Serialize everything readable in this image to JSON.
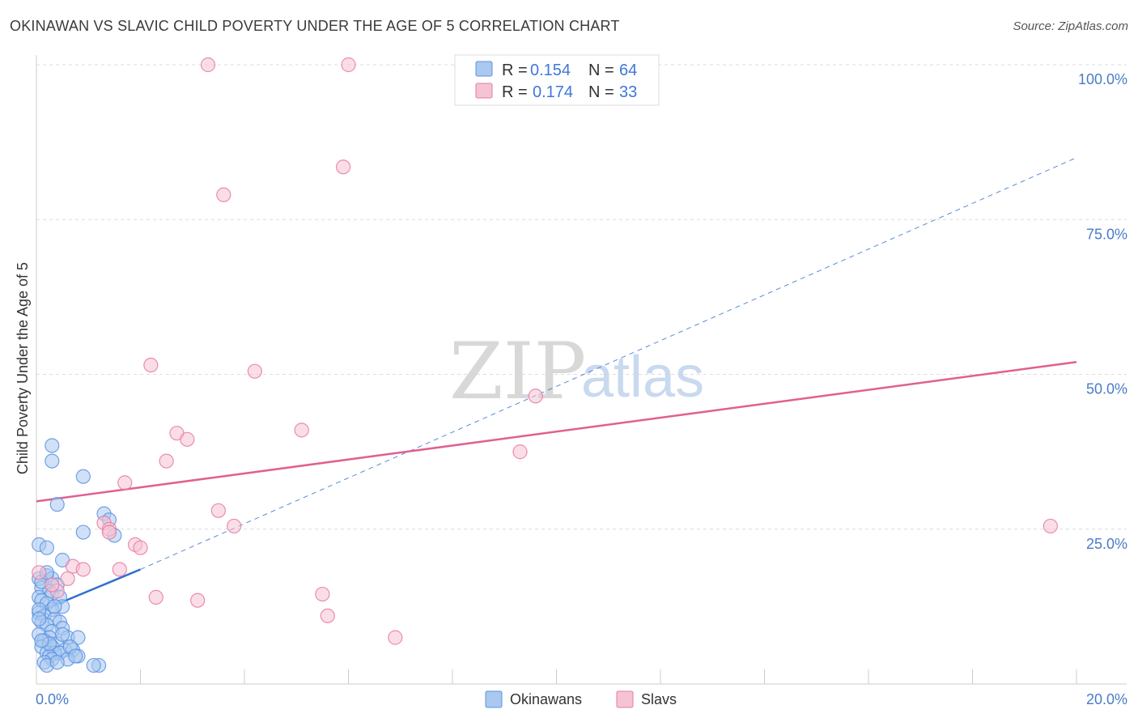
{
  "title": "OKINAWAN VS SLAVIC CHILD POVERTY UNDER THE AGE OF 5 CORRELATION CHART",
  "source": "Source: ZipAtlas.com",
  "watermark": {
    "zip": "ZIP",
    "atlas": "atlas"
  },
  "colors": {
    "okinawan": "#5b93e0",
    "okinawan_fill": "#aac8f0",
    "slav": "#e87aa0",
    "slav_fill": "#f6c3d4",
    "okinawan_line": "#2f6fce",
    "slav_line": "#e06090",
    "tick": "#4a7bc8"
  },
  "chart_data": {
    "type": "scatter",
    "title": "OKINAWAN VS SLAVIC CHILD POVERTY UNDER THE AGE OF 5 CORRELATION CHART",
    "xlabel": "",
    "ylabel": "Child Poverty Under the Age of 5",
    "xlim": [
      0,
      20
    ],
    "ylim": [
      0,
      100
    ],
    "x_ticks": [
      "0.0%",
      "20.0%"
    ],
    "y_ticks": [
      {
        "value": 25,
        "label": "25.0%"
      },
      {
        "value": 50,
        "label": "50.0%"
      },
      {
        "value": 75,
        "label": "75.0%"
      },
      {
        "value": 100,
        "label": "100.0%"
      }
    ],
    "legend": [
      {
        "name": "Okinawans",
        "r_label": "R =",
        "r": "0.154",
        "n_label": "N =",
        "n": "64"
      },
      {
        "name": "Slavs",
        "r_label": "R =",
        "r": "0.174",
        "n_label": "N =",
        "n": "33"
      }
    ],
    "series": [
      {
        "name": "Okinawans",
        "points": [
          [
            0.3,
            38.5
          ],
          [
            0.3,
            36
          ],
          [
            0.4,
            29
          ],
          [
            0.9,
            33.5
          ],
          [
            1.3,
            27.5
          ],
          [
            1.4,
            26.5
          ],
          [
            0.9,
            24.5
          ],
          [
            1.5,
            24
          ],
          [
            0.05,
            22.5
          ],
          [
            0.2,
            22
          ],
          [
            0.5,
            20
          ],
          [
            0.2,
            17.5
          ],
          [
            0.3,
            17
          ],
          [
            0.05,
            17
          ],
          [
            0.4,
            16
          ],
          [
            0.1,
            15.5
          ],
          [
            0.25,
            15
          ],
          [
            0.3,
            14.5
          ],
          [
            0.05,
            14
          ],
          [
            0.45,
            14
          ],
          [
            0.1,
            13.5
          ],
          [
            0.2,
            13
          ],
          [
            0.5,
            12.5
          ],
          [
            0.3,
            12
          ],
          [
            0.05,
            11.5
          ],
          [
            0.15,
            11
          ],
          [
            0.35,
            10.5
          ],
          [
            0.1,
            10
          ],
          [
            0.45,
            10
          ],
          [
            0.2,
            9.5
          ],
          [
            0.5,
            9
          ],
          [
            0.3,
            8.5
          ],
          [
            0.05,
            8
          ],
          [
            0.25,
            7.5
          ],
          [
            0.6,
            7.5
          ],
          [
            0.8,
            7.5
          ],
          [
            0.15,
            7
          ],
          [
            0.4,
            6.5
          ],
          [
            0.1,
            6
          ],
          [
            0.3,
            6
          ],
          [
            0.55,
            5.5
          ],
          [
            0.7,
            5.5
          ],
          [
            0.2,
            5
          ],
          [
            0.35,
            5
          ],
          [
            0.45,
            5
          ],
          [
            0.25,
            4.5
          ],
          [
            0.8,
            4.5
          ],
          [
            0.6,
            4
          ],
          [
            0.3,
            4
          ],
          [
            0.15,
            3.5
          ],
          [
            1.2,
            3
          ],
          [
            1.1,
            3
          ],
          [
            0.2,
            3
          ],
          [
            0.4,
            3.5
          ],
          [
            0.05,
            12
          ],
          [
            0.1,
            16.5
          ],
          [
            0.2,
            18
          ],
          [
            0.05,
            10.5
          ],
          [
            0.35,
            12.5
          ],
          [
            0.65,
            6
          ],
          [
            0.75,
            4.5
          ],
          [
            0.25,
            6.5
          ],
          [
            0.5,
            8
          ],
          [
            0.1,
            7
          ]
        ],
        "trend": {
          "x": [
            0,
            2
          ],
          "y": [
            11.5,
            18.5
          ],
          "extended_x": [
            2,
            20
          ],
          "extended_y": [
            18.5,
            85
          ]
        }
      },
      {
        "name": "Slavs",
        "points": [
          [
            3.3,
            100
          ],
          [
            6.0,
            100
          ],
          [
            5.9,
            83.5
          ],
          [
            3.6,
            79
          ],
          [
            2.2,
            51.5
          ],
          [
            4.2,
            50.5
          ],
          [
            9.6,
            46.5
          ],
          [
            5.1,
            41
          ],
          [
            2.7,
            40.5
          ],
          [
            2.9,
            39.5
          ],
          [
            2.5,
            36
          ],
          [
            9.3,
            37.5
          ],
          [
            1.7,
            32.5
          ],
          [
            3.5,
            28
          ],
          [
            1.3,
            26
          ],
          [
            1.4,
            25
          ],
          [
            3.8,
            25.5
          ],
          [
            1.9,
            22.5
          ],
          [
            2.0,
            22
          ],
          [
            0.7,
            19
          ],
          [
            0.9,
            18.5
          ],
          [
            1.6,
            18.5
          ],
          [
            0.05,
            18
          ],
          [
            0.6,
            17
          ],
          [
            0.4,
            15
          ],
          [
            2.3,
            14
          ],
          [
            3.1,
            13.5
          ],
          [
            5.5,
            14.5
          ],
          [
            5.6,
            11
          ],
          [
            6.9,
            7.5
          ],
          [
            19.5,
            25.5
          ],
          [
            1.4,
            24.5
          ],
          [
            0.3,
            16
          ]
        ],
        "trend": {
          "x": [
            0,
            20
          ],
          "y": [
            29.5,
            52
          ]
        }
      }
    ]
  }
}
